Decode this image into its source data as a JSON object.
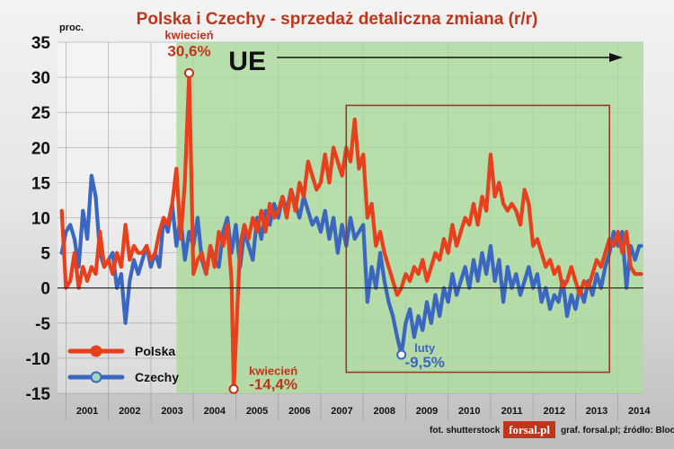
{
  "chart_data": {
    "type": "line",
    "title": "Polska i Czechy - sprzedaż detaliczna zmiana (r/r)",
    "ylabel": "proc.",
    "xlim": [
      2000.75,
      2014.55
    ],
    "ylim": [
      -15,
      35
    ],
    "yticks": [
      35,
      30,
      25,
      20,
      15,
      10,
      5,
      0,
      -5,
      -10,
      -15
    ],
    "xticks": [
      "2001",
      "2002",
      "2003",
      "2004",
      "2005",
      "2006",
      "2007",
      "2008",
      "2009",
      "2010",
      "2011",
      "2012",
      "2013",
      "2014"
    ],
    "grid": true,
    "legend_position": "bottom-left",
    "eu_label": "UE",
    "eu_start": 2003.55,
    "highlight_box": {
      "x0": 2007.55,
      "x1": 2013.75,
      "y0": -12,
      "y1": 26
    },
    "series": [
      {
        "name": "Polska",
        "color": "#e8401c",
        "points": [
          [
            2000.85,
            11
          ],
          [
            2000.95,
            0
          ],
          [
            2001.05,
            1
          ],
          [
            2001.15,
            5
          ],
          [
            2001.25,
            0
          ],
          [
            2001.35,
            3
          ],
          [
            2001.45,
            1
          ],
          [
            2001.55,
            3
          ],
          [
            2001.65,
            2
          ],
          [
            2001.75,
            8
          ],
          [
            2001.85,
            3
          ],
          [
            2001.95,
            4
          ],
          [
            2002.05,
            2
          ],
          [
            2002.15,
            5
          ],
          [
            2002.25,
            3
          ],
          [
            2002.35,
            9
          ],
          [
            2002.45,
            4
          ],
          [
            2002.55,
            6
          ],
          [
            2002.65,
            5
          ],
          [
            2002.75,
            5
          ],
          [
            2002.85,
            6
          ],
          [
            2002.95,
            4
          ],
          [
            2003.05,
            5
          ],
          [
            2003.15,
            8
          ],
          [
            2003.25,
            10
          ],
          [
            2003.35,
            9
          ],
          [
            2003.45,
            12
          ],
          [
            2003.55,
            17
          ],
          [
            2003.65,
            7
          ],
          [
            2003.75,
            15
          ],
          [
            2003.85,
            30.6
          ],
          [
            2003.95,
            2
          ],
          [
            2004.05,
            4
          ],
          [
            2004.15,
            5
          ],
          [
            2004.25,
            2
          ],
          [
            2004.35,
            6
          ],
          [
            2004.45,
            3
          ],
          [
            2004.55,
            8
          ],
          [
            2004.65,
            6
          ],
          [
            2004.75,
            9
          ],
          [
            2004.85,
            1
          ],
          [
            2004.9,
            -14.4
          ],
          [
            2005.05,
            6
          ],
          [
            2005.15,
            9
          ],
          [
            2005.25,
            7
          ],
          [
            2005.35,
            10
          ],
          [
            2005.45,
            8
          ],
          [
            2005.55,
            11
          ],
          [
            2005.65,
            8
          ],
          [
            2005.75,
            12
          ],
          [
            2005.85,
            10
          ],
          [
            2005.95,
            11
          ],
          [
            2006.05,
            13
          ],
          [
            2006.15,
            10
          ],
          [
            2006.25,
            14
          ],
          [
            2006.35,
            11
          ],
          [
            2006.45,
            15
          ],
          [
            2006.55,
            13
          ],
          [
            2006.65,
            18
          ],
          [
            2006.75,
            16
          ],
          [
            2006.85,
            14
          ],
          [
            2006.95,
            15
          ],
          [
            2007.05,
            19
          ],
          [
            2007.15,
            15
          ],
          [
            2007.25,
            20
          ],
          [
            2007.35,
            18
          ],
          [
            2007.45,
            16
          ],
          [
            2007.55,
            20
          ],
          [
            2007.65,
            18
          ],
          [
            2007.75,
            24
          ],
          [
            2007.85,
            17
          ],
          [
            2007.95,
            19
          ],
          [
            2008.05,
            10
          ],
          [
            2008.15,
            12
          ],
          [
            2008.25,
            6
          ],
          [
            2008.35,
            8
          ],
          [
            2008.45,
            5
          ],
          [
            2008.55,
            3
          ],
          [
            2008.65,
            1
          ],
          [
            2008.75,
            -1
          ],
          [
            2008.85,
            0
          ],
          [
            2008.95,
            2
          ],
          [
            2009.05,
            1
          ],
          [
            2009.15,
            3
          ],
          [
            2009.25,
            2
          ],
          [
            2009.35,
            4
          ],
          [
            2009.45,
            1
          ],
          [
            2009.55,
            3
          ],
          [
            2009.65,
            5
          ],
          [
            2009.75,
            4
          ],
          [
            2009.85,
            7
          ],
          [
            2009.95,
            5
          ],
          [
            2010.05,
            9
          ],
          [
            2010.15,
            6
          ],
          [
            2010.25,
            8
          ],
          [
            2010.35,
            10
          ],
          [
            2010.45,
            9
          ],
          [
            2010.55,
            12
          ],
          [
            2010.65,
            9
          ],
          [
            2010.75,
            13
          ],
          [
            2010.85,
            11
          ],
          [
            2010.95,
            19
          ],
          [
            2011.05,
            13
          ],
          [
            2011.15,
            15
          ],
          [
            2011.25,
            12
          ],
          [
            2011.35,
            11
          ],
          [
            2011.45,
            12
          ],
          [
            2011.55,
            11
          ],
          [
            2011.65,
            9
          ],
          [
            2011.75,
            14
          ],
          [
            2011.85,
            12
          ],
          [
            2011.95,
            6
          ],
          [
            2012.05,
            7
          ],
          [
            2012.15,
            5
          ],
          [
            2012.25,
            3
          ],
          [
            2012.35,
            4
          ],
          [
            2012.45,
            2
          ],
          [
            2012.55,
            3
          ],
          [
            2012.65,
            0
          ],
          [
            2012.75,
            1
          ],
          [
            2012.85,
            3
          ],
          [
            2012.95,
            1
          ],
          [
            2013.05,
            -1
          ],
          [
            2013.15,
            1
          ],
          [
            2013.25,
            0
          ],
          [
            2013.35,
            2
          ],
          [
            2013.45,
            4
          ],
          [
            2013.55,
            3
          ],
          [
            2013.65,
            5
          ],
          [
            2013.75,
            7
          ],
          [
            2013.85,
            6
          ],
          [
            2013.95,
            8
          ],
          [
            2014.05,
            5
          ],
          [
            2014.15,
            8
          ],
          [
            2014.25,
            3
          ],
          [
            2014.35,
            2
          ],
          [
            2014.45,
            2
          ],
          [
            2014.5,
            2
          ]
        ]
      },
      {
        "name": "Czechy",
        "color": "#3b67c0",
        "points": [
          [
            2000.85,
            5
          ],
          [
            2000.95,
            8
          ],
          [
            2001.05,
            9
          ],
          [
            2001.15,
            7
          ],
          [
            2001.25,
            3
          ],
          [
            2001.35,
            11
          ],
          [
            2001.45,
            7
          ],
          [
            2001.55,
            16
          ],
          [
            2001.65,
            13
          ],
          [
            2001.75,
            5
          ],
          [
            2001.85,
            3
          ],
          [
            2001.95,
            4
          ],
          [
            2002.05,
            5
          ],
          [
            2002.15,
            0
          ],
          [
            2002.25,
            2
          ],
          [
            2002.35,
            -5
          ],
          [
            2002.45,
            1
          ],
          [
            2002.55,
            4
          ],
          [
            2002.65,
            2
          ],
          [
            2002.75,
            4
          ],
          [
            2002.85,
            6
          ],
          [
            2002.95,
            3
          ],
          [
            2003.05,
            5
          ],
          [
            2003.15,
            3
          ],
          [
            2003.25,
            10
          ],
          [
            2003.35,
            8
          ],
          [
            2003.45,
            12
          ],
          [
            2003.55,
            6
          ],
          [
            2003.65,
            10
          ],
          [
            2003.75,
            4
          ],
          [
            2003.85,
            8
          ],
          [
            2003.95,
            6
          ],
          [
            2004.05,
            10
          ],
          [
            2004.15,
            4
          ],
          [
            2004.25,
            2
          ],
          [
            2004.35,
            6
          ],
          [
            2004.45,
            4
          ],
          [
            2004.55,
            3
          ],
          [
            2004.65,
            8
          ],
          [
            2004.75,
            10
          ],
          [
            2004.85,
            5
          ],
          [
            2004.95,
            9
          ],
          [
            2005.05,
            3
          ],
          [
            2005.15,
            8
          ],
          [
            2005.25,
            6
          ],
          [
            2005.35,
            4
          ],
          [
            2005.45,
            10
          ],
          [
            2005.55,
            7
          ],
          [
            2005.65,
            11
          ],
          [
            2005.75,
            9
          ],
          [
            2005.85,
            12
          ],
          [
            2005.95,
            10
          ],
          [
            2006.05,
            13
          ],
          [
            2006.15,
            11
          ],
          [
            2006.25,
            14
          ],
          [
            2006.35,
            12
          ],
          [
            2006.45,
            10
          ],
          [
            2006.55,
            13
          ],
          [
            2006.65,
            11
          ],
          [
            2006.75,
            9
          ],
          [
            2006.85,
            10
          ],
          [
            2006.95,
            8
          ],
          [
            2007.05,
            11
          ],
          [
            2007.15,
            7
          ],
          [
            2007.25,
            10
          ],
          [
            2007.35,
            5
          ],
          [
            2007.45,
            9
          ],
          [
            2007.55,
            6
          ],
          [
            2007.65,
            10
          ],
          [
            2007.75,
            7
          ],
          [
            2007.85,
            8
          ],
          [
            2007.95,
            9
          ],
          [
            2008.05,
            -2
          ],
          [
            2008.15,
            3
          ],
          [
            2008.25,
            0
          ],
          [
            2008.35,
            5
          ],
          [
            2008.45,
            1
          ],
          [
            2008.55,
            -2
          ],
          [
            2008.65,
            -4
          ],
          [
            2008.75,
            -7
          ],
          [
            2008.85,
            -9.5
          ],
          [
            2008.95,
            -5
          ],
          [
            2009.05,
            -3
          ],
          [
            2009.15,
            -7
          ],
          [
            2009.25,
            -4
          ],
          [
            2009.35,
            -6
          ],
          [
            2009.45,
            -2
          ],
          [
            2009.55,
            -5
          ],
          [
            2009.65,
            -1
          ],
          [
            2009.75,
            -4
          ],
          [
            2009.85,
            0
          ],
          [
            2009.95,
            -2
          ],
          [
            2010.05,
            2
          ],
          [
            2010.15,
            -1
          ],
          [
            2010.25,
            1
          ],
          [
            2010.35,
            3
          ],
          [
            2010.45,
            0
          ],
          [
            2010.55,
            4
          ],
          [
            2010.65,
            1
          ],
          [
            2010.75,
            5
          ],
          [
            2010.85,
            2
          ],
          [
            2010.95,
            6
          ],
          [
            2011.05,
            1
          ],
          [
            2011.15,
            4
          ],
          [
            2011.25,
            -2
          ],
          [
            2011.35,
            3
          ],
          [
            2011.45,
            0
          ],
          [
            2011.55,
            2
          ],
          [
            2011.65,
            -1
          ],
          [
            2011.75,
            1
          ],
          [
            2011.85,
            3
          ],
          [
            2011.95,
            0
          ],
          [
            2012.05,
            2
          ],
          [
            2012.15,
            -2
          ],
          [
            2012.25,
            0
          ],
          [
            2012.35,
            -3
          ],
          [
            2012.45,
            -1
          ],
          [
            2012.55,
            -2
          ],
          [
            2012.65,
            1
          ],
          [
            2012.75,
            -4
          ],
          [
            2012.85,
            -1
          ],
          [
            2012.95,
            -3
          ],
          [
            2013.05,
            0
          ],
          [
            2013.15,
            -2
          ],
          [
            2013.25,
            1
          ],
          [
            2013.35,
            -1
          ],
          [
            2013.45,
            2
          ],
          [
            2013.55,
            0
          ],
          [
            2013.65,
            3
          ],
          [
            2013.75,
            5
          ],
          [
            2013.85,
            8
          ],
          [
            2013.95,
            6
          ],
          [
            2014.05,
            8
          ],
          [
            2014.15,
            0
          ],
          [
            2014.25,
            6
          ],
          [
            2014.35,
            4
          ],
          [
            2014.45,
            6
          ],
          [
            2014.5,
            6
          ]
        ]
      }
    ],
    "annotations": [
      {
        "month": "kwiecień",
        "value": "30,6%",
        "x": 2003.85,
        "y": 30.6,
        "color": "#c0361a"
      },
      {
        "month": "kwiecień",
        "value": "-14,4%",
        "x": 2004.9,
        "y": -14.4,
        "color": "#c0361a"
      },
      {
        "month": "luty",
        "value": "-9,5%",
        "x": 2008.85,
        "y": -9.5,
        "color": "#3b67c0"
      }
    ]
  },
  "footer": {
    "photo_credit": "fot. shutterstock",
    "logo_text": "forsal.pl",
    "source": "graf. forsal.pl;  źródło: Bloomberg"
  },
  "colors": {
    "title": "#c0361a",
    "eu_zone": "#a9d89a",
    "highlight_box": "#9b3a24",
    "text": "#111111"
  }
}
